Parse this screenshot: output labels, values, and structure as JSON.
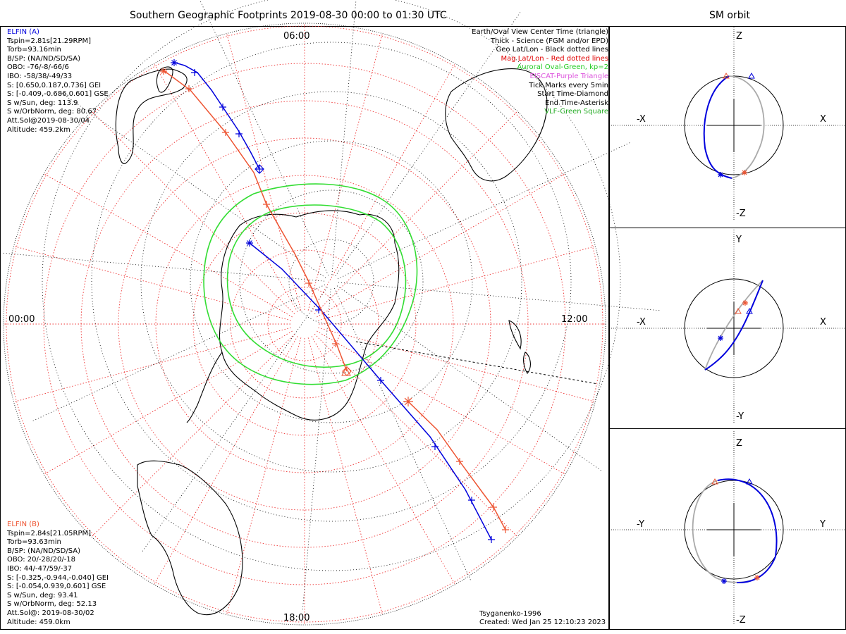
{
  "title": "Southern Geographic Footprints 2019-08-30 00:00 to 01:30 UTC",
  "sm_title": "SM orbit",
  "mlt": {
    "top": "06:00",
    "left": "00:00",
    "right": "12:00",
    "bottom": "18:00"
  },
  "info_a": {
    "header": "ELFIN (A)",
    "lines": [
      "Tspin=2.81s[21.29RPM]",
      "Torb=93.16min",
      "B/SP: (NA/ND/SD/SA)",
      "OBO: -76/-8/-66/6",
      "IBO: -58/38/-49/33",
      "S: [0.650,0.187,0.736] GEI",
      "S: [-0.409,-0.686,0.601] GSE",
      "S w/Sun, deg: 113.9",
      "S w/OrbNorm, deg: 80.67",
      "Att.Sol@2019-08-30/04",
      "Altitude: 459.2km"
    ]
  },
  "info_b": {
    "header": "ELFIN (B)",
    "lines": [
      "Tspin=2.84s[21.05RPM]",
      "Torb=93.63min",
      "B/SP: (NA/ND/SD/SA)",
      "OBO: 20/-28/20/-18",
      "IBO: 44/-47/59/-37",
      "S: [-0.325,-0.944,-0.040] GEI",
      "S: [-0.054,0.939,0.601] GSE",
      "S w/Sun, deg: 93.41",
      "S w/OrbNorm, deg: 52.13",
      "Att.Sol@: 2019-08-30/02",
      "Altitude: 459.0km"
    ]
  },
  "legend": [
    {
      "text": "Earth/Oval View Center Time (triangle)",
      "color": "#000000"
    },
    {
      "text": "Thick - Science (FGM and/or EPD)",
      "color": "#000000"
    },
    {
      "text": "Geo Lat/Lon - Black dotted lines",
      "color": "#000000"
    },
    {
      "text": "Mag Lat/Lon - Red dotted lines",
      "color": "#e00000"
    },
    {
      "text": "Auroral Oval-Green, kp=2",
      "color": "#22cc22"
    },
    {
      "text": "EISCAT-Purple Triangle",
      "color": "#dd55dd"
    },
    {
      "text": "Tick Marks every 5min",
      "color": "#000000"
    },
    {
      "text": "Start Time-Diamond",
      "color": "#000000"
    },
    {
      "text": "End Time-Asterisk",
      "color": "#000000"
    },
    {
      "text": "VLF-Green Square",
      "color": "#22aa22"
    }
  ],
  "credit": "Tsyganenko-1996",
  "created": "Created: Wed Jan 25 12:10:23 2023",
  "panels": [
    {
      "h_neg": "-X",
      "h_pos": "X",
      "v_pos": "Z",
      "v_neg": "-Z"
    },
    {
      "h_neg": "-X",
      "h_pos": "X",
      "v_pos": "Y",
      "v_neg": "-Y"
    },
    {
      "h_neg": "-Y",
      "h_pos": "Y",
      "v_pos": "Z",
      "v_neg": "-Z"
    }
  ],
  "colors": {
    "elfin_a": "#0000dd",
    "elfin_b": "#ee5533",
    "oval": "#33dd33",
    "mag_grid": "#ee3333",
    "geo_grid": "#000000",
    "orbit_gray": "#aaaaaa"
  }
}
